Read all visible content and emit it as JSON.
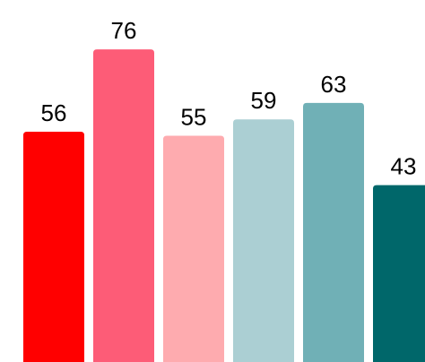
{
  "chart_data": {
    "type": "bar",
    "values": [
      56,
      76,
      55,
      59,
      63,
      43
    ],
    "colors": [
      "#ff0000",
      "#fd5c77",
      "#feabaf",
      "#abcfd3",
      "#70b0b6",
      "#00676a"
    ],
    "data_labels": [
      "56",
      "76",
      "55",
      "59",
      "63",
      "43"
    ],
    "ylim": [
      0,
      102
    ],
    "grid": false,
    "legend": "none"
  }
}
